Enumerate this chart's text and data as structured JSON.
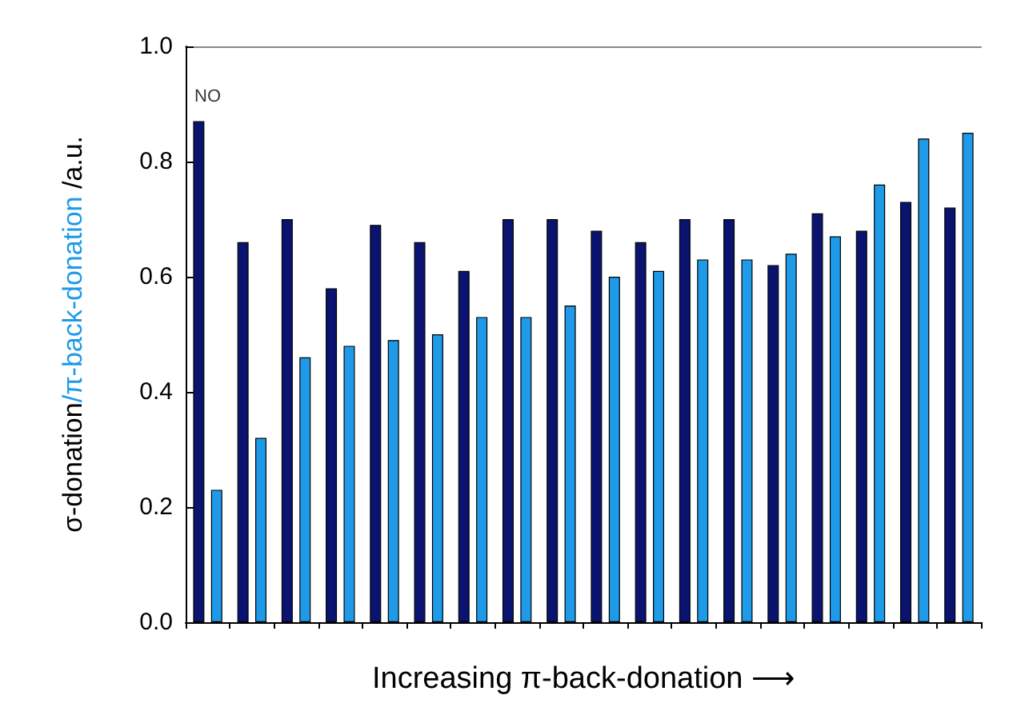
{
  "chart_data": {
    "type": "bar",
    "xlabel": "Increasing π-back-donation ⟶",
    "ylabel": "σ-donation/π-back-donation /a.u.",
    "categories": [
      null,
      null,
      null,
      null,
      null,
      null,
      null,
      null,
      null,
      null,
      null,
      null,
      null,
      null,
      null,
      null,
      null,
      null
    ],
    "series": [
      {
        "color": "#0a1470",
        "values": [
          0.87,
          0.66,
          0.7,
          0.58,
          0.69,
          0.66,
          0.61,
          0.7,
          0.7,
          0.68,
          0.66,
          0.7,
          0.7,
          0.62,
          0.71,
          0.68,
          0.73,
          0.72
        ]
      },
      {
        "color": "#1e9ae8",
        "values": [
          0.23,
          0.32,
          0.46,
          0.48,
          0.49,
          0.5,
          0.53,
          0.53,
          0.55,
          0.6,
          0.61,
          0.63,
          0.63,
          0.64,
          0.67,
          0.76,
          0.84,
          0.85
        ]
      }
    ],
    "ylim": [
      0,
      1
    ],
    "yticks": [
      {
        "value": 0,
        "label": "0.0"
      },
      {
        "value": 0.2,
        "label": "0.2"
      },
      {
        "value": 0.4,
        "label": "0.4"
      },
      {
        "value": 0.6,
        "label": "0.6"
      },
      {
        "value": 0.8,
        "label": "0.8"
      },
      {
        "value": 1,
        "label": "1.0"
      }
    ],
    "annotations": [
      {
        "text": "NO",
        "y": 0.87
      }
    ]
  }
}
